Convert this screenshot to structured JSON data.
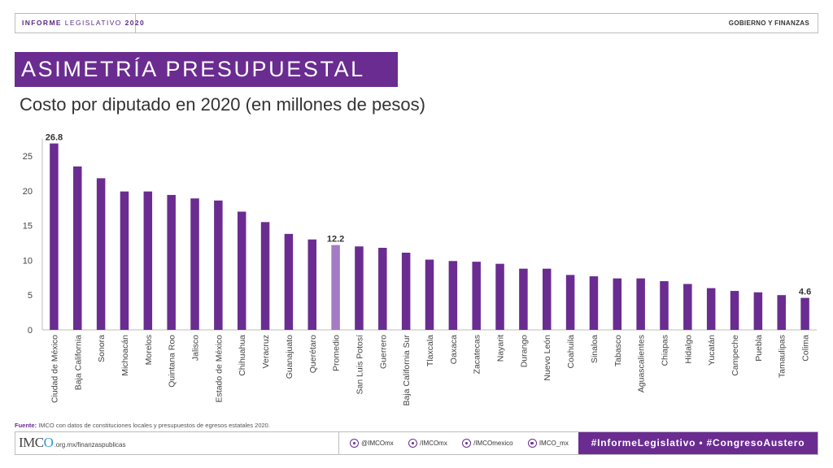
{
  "header": {
    "left_bold": "INFORME",
    "left_rest": "LEGISLATIVO",
    "left_year": "2020",
    "right": "GOBIERNO Y FINANZAS"
  },
  "title": "ASIMETRÍA PRESUPUESTAL",
  "subtitle": "Costo por diputado en 2020 (en millones de pesos)",
  "chart_data": {
    "type": "bar",
    "title": "Costo por diputado en 2020 (en millones de pesos)",
    "xlabel": "",
    "ylabel": "",
    "ylim": [
      0,
      28
    ],
    "yticks": [
      0,
      5,
      10,
      15,
      20,
      25
    ],
    "grid": false,
    "categories": [
      "Ciudad de México",
      "Baja California",
      "Sonora",
      "Michoacán",
      "Morelos",
      "Quintana Roo",
      "Jalisco",
      "Estado de México",
      "Chihuahua",
      "Veracruz",
      "Guanajuato",
      "Querétaro",
      "Promedio",
      "San Luis Potosí",
      "Guerrero",
      "Baja California Sur",
      "Tlaxcala",
      "Oaxaca",
      "Zacatecas",
      "Nayarit",
      "Durango",
      "Nuevo León",
      "Coahuila",
      "Sinaloa",
      "Tabasco",
      "Aguascalientes",
      "Chiapas",
      "Hidalgo",
      "Yucatán",
      "Campeche",
      "Puebla",
      "Tamaulipas",
      "Colima"
    ],
    "values": [
      26.8,
      23.5,
      21.8,
      19.9,
      19.9,
      19.4,
      18.9,
      18.6,
      17.0,
      15.5,
      13.8,
      13.0,
      12.2,
      12.0,
      11.8,
      11.1,
      10.1,
      9.9,
      9.8,
      9.5,
      8.8,
      8.8,
      7.9,
      7.7,
      7.4,
      7.4,
      7.0,
      6.6,
      6.0,
      5.6,
      5.4,
      5.0,
      4.6
    ],
    "data_labels": [
      {
        "index": 0,
        "text": "26.8"
      },
      {
        "index": 12,
        "text": "12.2"
      },
      {
        "index": 32,
        "text": "4.6"
      }
    ],
    "highlight_index": 12,
    "colors": {
      "bar": "#6a2c91",
      "highlight": "#a47cc3",
      "axis": "#bdbdbd"
    }
  },
  "source": {
    "label": "Fuente:",
    "text": "IMCO con datos de constituciones locales y presupuestos de egresos estatales 2020."
  },
  "footer": {
    "logo_text": "IMC",
    "logo_o": "O",
    "url": ".org.mx/finanzaspublicas",
    "socials": [
      {
        "icon": "twitter-icon",
        "label": "@IMCOmx"
      },
      {
        "icon": "facebook-icon",
        "label": "/IMCOmx"
      },
      {
        "icon": "youtube-icon",
        "label": "/IMCOmexico"
      },
      {
        "icon": "instagram-icon",
        "label": "IMCO_mx"
      }
    ],
    "hashtags": "#InformeLegislativo • #CongresoAustero"
  }
}
